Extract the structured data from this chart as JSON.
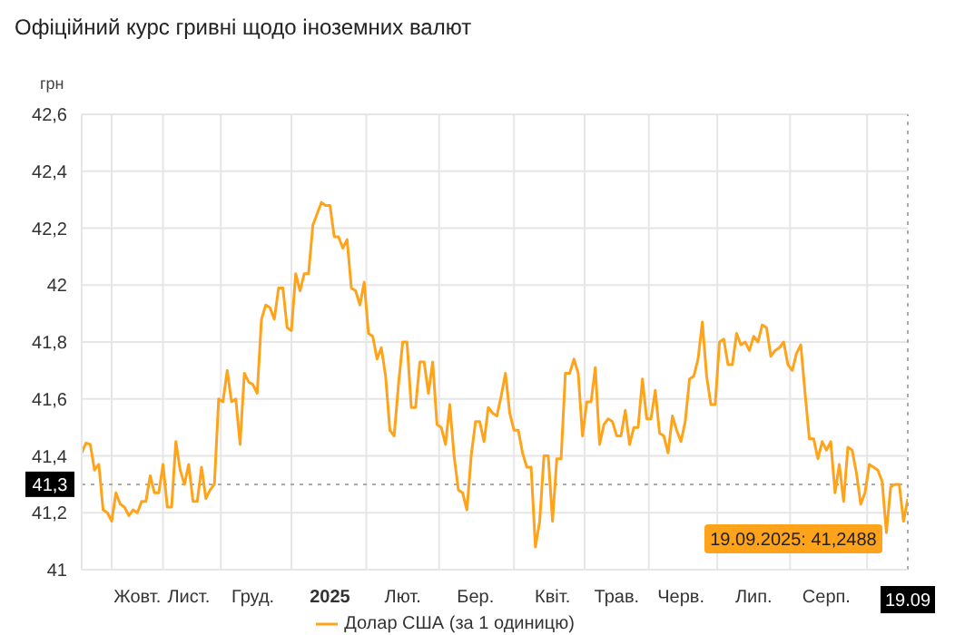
{
  "chart_data": {
    "type": "line",
    "title": "Офіційний курс гривні щодо іноземних валют",
    "ylabel": "грн",
    "categories": [
      null,
      null,
      null,
      null,
      null,
      null,
      null,
      null,
      null,
      null,
      null,
      null,
      null,
      "Жовт.",
      null,
      null,
      null,
      null,
      null,
      null,
      null,
      null,
      null,
      null,
      null,
      "Лист.",
      null,
      null,
      null,
      null,
      null,
      null,
      null,
      null,
      null,
      null,
      null,
      null,
      null,
      null,
      "Груд.",
      null,
      null,
      null,
      null,
      null,
      null,
      null,
      null,
      null,
      null,
      null,
      null,
      null,
      null,
      null,
      null,
      null,
      "2025",
      null,
      null,
      null,
      null,
      null,
      null,
      null,
      null,
      null,
      null,
      null,
      null,
      null,
      null,
      null,
      null,
      "Лют.",
      null,
      null,
      null,
      null,
      null,
      null,
      null,
      null,
      null,
      null,
      null,
      null,
      null,
      null,
      null,
      null,
      "Бер.",
      null,
      null,
      null,
      null,
      null,
      null,
      null,
      null,
      null,
      null,
      null,
      null,
      null,
      null,
      null,
      null,
      null,
      "Квіт.",
      null,
      null,
      null,
      null,
      null,
      null,
      null,
      null,
      null,
      null,
      null,
      null,
      null,
      null,
      "Трав.",
      null,
      null,
      null,
      null,
      null,
      null,
      null,
      null,
      null,
      null,
      null,
      null,
      null,
      null,
      "Черв.",
      null,
      null,
      null,
      null,
      null,
      null,
      null,
      null,
      null,
      null,
      null,
      null,
      null,
      null,
      null,
      null,
      "Лип.",
      null,
      null,
      null,
      null,
      null,
      null,
      null,
      null,
      null,
      null,
      null,
      null,
      null,
      null,
      null,
      null,
      "Серп.",
      null,
      null,
      null,
      null,
      null,
      null,
      null,
      null,
      null,
      null,
      null,
      null,
      null,
      null,
      null,
      null,
      null,
      null,
      "19.09"
    ],
    "series": [
      {
        "name": "Долар США (за 1 одиницю)",
        "color": "#ffa31a",
        "values": [
          41.41,
          41.445,
          41.44,
          41.35,
          41.37,
          41.21,
          41.2,
          41.17,
          41.27,
          41.23,
          41.22,
          41.19,
          41.21,
          41.2,
          41.24,
          41.24,
          41.33,
          41.27,
          41.27,
          41.37,
          41.22,
          41.22,
          41.45,
          41.35,
          41.3,
          41.37,
          41.24,
          41.24,
          41.36,
          41.25,
          41.28,
          41.3,
          41.6,
          41.59,
          41.7,
          41.59,
          41.6,
          41.44,
          41.69,
          41.66,
          41.65,
          41.62,
          41.88,
          41.93,
          41.92,
          41.88,
          41.99,
          41.99,
          41.85,
          41.84,
          42.04,
          41.98,
          42.04,
          42.04,
          42.21,
          42.25,
          42.29,
          42.28,
          42.28,
          42.17,
          42.17,
          42.13,
          42.16,
          41.99,
          41.98,
          41.93,
          42.01,
          41.83,
          41.82,
          41.74,
          41.78,
          41.68,
          41.49,
          41.47,
          41.65,
          41.8,
          41.8,
          41.57,
          41.57,
          41.73,
          41.73,
          41.62,
          41.73,
          41.51,
          41.5,
          41.44,
          41.58,
          41.4,
          41.28,
          41.27,
          41.21,
          41.4,
          41.52,
          41.52,
          41.45,
          41.57,
          41.55,
          41.54,
          41.61,
          41.69,
          41.55,
          41.49,
          41.49,
          41.41,
          41.36,
          41.36,
          41.08,
          41.17,
          41.4,
          41.4,
          41.17,
          41.39,
          41.39,
          41.69,
          41.69,
          41.74,
          41.69,
          41.47,
          41.59,
          41.59,
          41.71,
          41.44,
          41.51,
          41.53,
          41.52,
          41.47,
          41.47,
          41.56,
          41.44,
          41.5,
          41.5,
          41.67,
          41.53,
          41.53,
          41.63,
          41.48,
          41.47,
          41.41,
          41.54,
          41.49,
          41.45,
          41.52,
          41.67,
          41.68,
          41.74,
          41.87,
          41.68,
          41.58,
          41.58,
          41.8,
          41.81,
          41.72,
          41.72,
          41.83,
          41.79,
          41.8,
          41.77,
          41.82,
          41.8,
          41.86,
          41.85,
          41.75,
          41.77,
          41.78,
          41.8,
          41.72,
          41.7,
          41.76,
          41.79,
          41.62,
          41.46,
          41.46,
          41.39,
          41.45,
          41.42,
          41.45,
          41.27,
          41.37,
          41.24,
          41.43,
          41.42,
          41.34,
          41.23,
          41.27,
          41.37,
          41.36,
          41.35,
          41.31,
          41.13,
          41.29,
          41.3,
          41.3,
          41.17,
          41.2488
        ]
      }
    ],
    "ylim": [
      41,
      42.6
    ],
    "yticks": [
      41,
      {
        "value": 41.2,
        "label": "41,2"
      },
      {
        "value": 41.4,
        "label": "41,4"
      },
      {
        "value": 41.6,
        "label": "41,6"
      },
      {
        "value": 41.8,
        "label": "41,8"
      },
      42,
      {
        "value": 42.2,
        "label": "42,2"
      },
      {
        "value": 42.4,
        "label": "42,4"
      },
      {
        "value": 42.6,
        "label": "42,6"
      }
    ],
    "ref_lines": [
      {
        "axis": "y",
        "value": 41.3,
        "label": "41,3",
        "line_style": "dotted"
      },
      {
        "axis": "x",
        "value": "19.09",
        "line_style": "dotted"
      }
    ],
    "annotations": [
      {
        "text": "19.09.2025: 41,2488",
        "x": "19.09",
        "y": 41.2488
      }
    ],
    "grid": true,
    "legend": "bottom",
    "marker": "none",
    "line_style": "solid"
  }
}
